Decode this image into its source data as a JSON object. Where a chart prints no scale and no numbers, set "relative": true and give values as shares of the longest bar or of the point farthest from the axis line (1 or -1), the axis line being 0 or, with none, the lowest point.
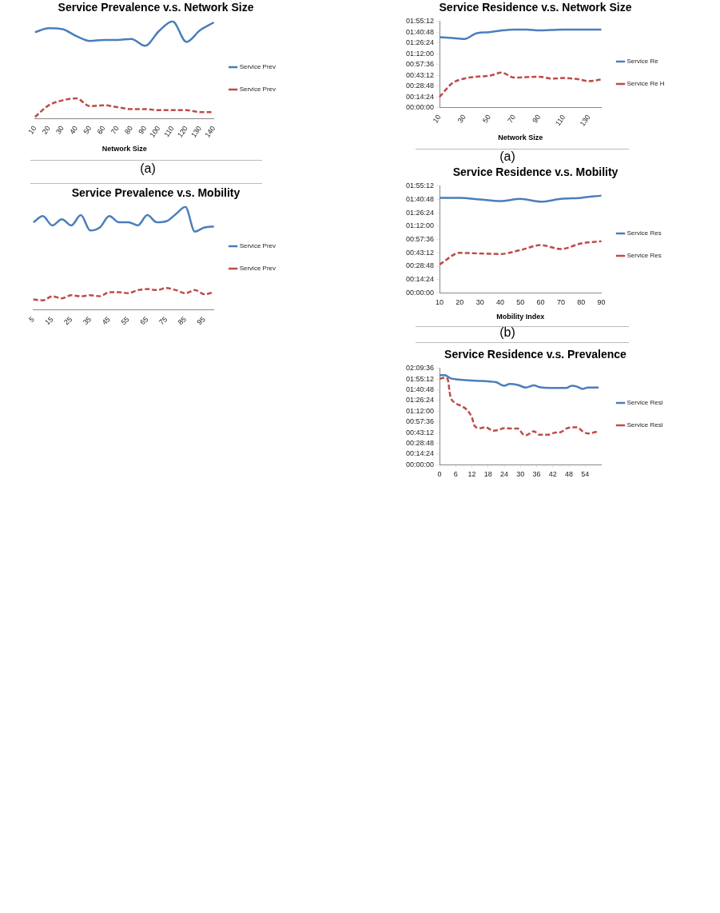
{
  "chart_data": [
    {
      "type": "line",
      "title": "Service Prevalence v.s. Network Size",
      "xlabel": "Network Size",
      "relative": true,
      "legend": "right",
      "marker": "none",
      "annotations": [
        "(a)"
      ],
      "categories": [
        "10",
        "20",
        "30",
        "40",
        "50",
        "60",
        "70",
        "80",
        "90",
        "100",
        "110",
        "120",
        "130",
        "140"
      ],
      "series": [
        {
          "name": "Service Prev",
          "color": "#4a7ebb",
          "line_style": "solid",
          "values": [
            0.89,
            0.93,
            0.92,
            0.85,
            0.8,
            0.81,
            0.81,
            0.82,
            0.75,
            0.9,
            1,
            0.79,
            0.91,
            0.99
          ]
        },
        {
          "name": "Service Prev",
          "color": "#be4b48",
          "line_style": "dashed",
          "values": [
            0.02,
            0.14,
            0.19,
            0.21,
            0.13,
            0.14,
            0.12,
            0.1,
            0.1,
            0.09,
            0.09,
            0.09,
            0.07,
            0.07
          ]
        }
      ]
    },
    {
      "type": "line",
      "title": "Service Prevalence v.s. Mobility",
      "relative": true,
      "legend": "right",
      "marker": "none",
      "categories": [
        "5",
        null,
        "15",
        null,
        "25",
        null,
        "35",
        null,
        "45",
        null,
        "55",
        null,
        "65",
        null,
        "75",
        null,
        "85",
        null,
        "95",
        null
      ],
      "series": [
        {
          "name": "Service Prev",
          "color": "#4a7ebb",
          "line_style": "solid",
          "values": [
            0.85,
            0.91,
            0.82,
            0.88,
            0.82,
            0.92,
            0.77,
            0.8,
            0.91,
            0.85,
            0.85,
            0.82,
            0.92,
            0.85,
            0.86,
            0.93,
            1,
            0.76,
            0.8,
            0.81
          ]
        },
        {
          "name": "Service Prev",
          "color": "#be4b48",
          "line_style": "dashed",
          "values": [
            0.1,
            0.09,
            0.13,
            0.11,
            0.14,
            0.13,
            0.14,
            0.13,
            0.17,
            0.17,
            0.16,
            0.19,
            0.2,
            0.19,
            0.21,
            0.19,
            0.16,
            0.19,
            0.15,
            0.17
          ]
        }
      ]
    },
    {
      "type": "line",
      "title": "Service Residence v.s. Network Size",
      "xlabel": "Network Size",
      "legend": "right",
      "marker": "none",
      "annotations": [
        "(a)"
      ],
      "categories": [
        "10",
        null,
        "30",
        null,
        "50",
        null,
        "70",
        null,
        "90",
        null,
        "110",
        null,
        "130",
        null
      ],
      "ylim": [
        0,
        1.92
      ],
      "yticks": [
        {
          "value": 0,
          "label": "00:00:00"
        },
        {
          "value": 0.24,
          "label": "00:14:24"
        },
        {
          "value": 0.48,
          "label": "00:28:48"
        },
        {
          "value": 0.72,
          "label": "00:43:12"
        },
        {
          "value": 0.96,
          "label": "00:57:36"
        },
        {
          "value": 1.2,
          "label": "01:12:00"
        },
        {
          "value": 1.44,
          "label": "01:26:24"
        },
        {
          "value": 1.68,
          "label": "01:40:48"
        },
        {
          "value": 1.92,
          "label": "01:55:12"
        }
      ],
      "series": [
        {
          "name": "Service Re",
          "color": "#4a7ebb",
          "line_style": "solid",
          "values": [
            1.57,
            1.55,
            1.53,
            1.66,
            1.68,
            1.72,
            1.74,
            1.74,
            1.72,
            1.73,
            1.74,
            1.74,
            1.74,
            1.74
          ]
        },
        {
          "name": "Service Re H",
          "color": "#be4b48",
          "line_style": "dashed",
          "values": [
            0.24,
            0.54,
            0.65,
            0.69,
            0.71,
            0.78,
            0.67,
            0.68,
            0.69,
            0.65,
            0.66,
            0.64,
            0.59,
            0.63
          ]
        }
      ]
    },
    {
      "type": "line",
      "title": "Service Residence v.s. Mobility",
      "xlabel": "Mobility Index",
      "legend": "right",
      "marker": "none",
      "annotations": [
        "(b)"
      ],
      "categories": [
        "10",
        "20",
        "30",
        "40",
        "50",
        "60",
        "70",
        "80",
        "90"
      ],
      "ylim": [
        0,
        1.92
      ],
      "yticks": [
        {
          "value": 0,
          "label": "00:00:00"
        },
        {
          "value": 0.24,
          "label": "00:14:24"
        },
        {
          "value": 0.48,
          "label": "00:28:48"
        },
        {
          "value": 0.72,
          "label": "00:43:12"
        },
        {
          "value": 0.96,
          "label": "00:57:36"
        },
        {
          "value": 1.2,
          "label": "01:12:00"
        },
        {
          "value": 1.44,
          "label": "01:26:24"
        },
        {
          "value": 1.68,
          "label": "01:40:48"
        },
        {
          "value": 1.92,
          "label": "01:55:12"
        }
      ],
      "series": [
        {
          "name": "Service Res",
          "color": "#4a7ebb",
          "line_style": "solid",
          "values": [
            1.71,
            1.71,
            1.68,
            1.65,
            1.69,
            1.64,
            1.69,
            1.71,
            1.75
          ]
        },
        {
          "name": "Service Res",
          "color": "#be4b48",
          "line_style": "dashed",
          "values": [
            0.51,
            0.72,
            0.71,
            0.7,
            0.77,
            0.86,
            0.79,
            0.89,
            0.93
          ]
        }
      ]
    },
    {
      "type": "line",
      "title": "Service Residence v.s. Prevalence",
      "legend": "right",
      "marker": "none",
      "xlim": [
        0,
        60
      ],
      "xticks": [
        0,
        6,
        12,
        18,
        24,
        30,
        36,
        42,
        48,
        54
      ],
      "ylim": [
        0,
        2.16
      ],
      "yticks": [
        {
          "value": 0,
          "label": "00:00:00"
        },
        {
          "value": 0.24,
          "label": "00:14:24"
        },
        {
          "value": 0.48,
          "label": "00:28:48"
        },
        {
          "value": 0.72,
          "label": "00:43:12"
        },
        {
          "value": 0.96,
          "label": "00:57:36"
        },
        {
          "value": 1.2,
          "label": "01:12:00"
        },
        {
          "value": 1.44,
          "label": "01:26:24"
        },
        {
          "value": 1.68,
          "label": "01:40:48"
        },
        {
          "value": 1.92,
          "label": "01:55:12"
        },
        {
          "value": 2.16,
          "label": "02:09:36"
        }
      ],
      "series": [
        {
          "name": "Service Resi",
          "color": "#4a7ebb",
          "line_style": "solid",
          "x": [
            0,
            2,
            4,
            7,
            11,
            15,
            18,
            21,
            24,
            26,
            29,
            32,
            35,
            37,
            41,
            45,
            47,
            49,
            51,
            53,
            55,
            59
          ],
          "values": [
            2.01,
            2.01,
            1.94,
            1.91,
            1.89,
            1.88,
            1.87,
            1.85,
            1.77,
            1.81,
            1.79,
            1.73,
            1.78,
            1.74,
            1.72,
            1.72,
            1.72,
            1.77,
            1.75,
            1.7,
            1.73,
            1.73
          ]
        },
        {
          "name": "Service Resi",
          "color": "#be4b48",
          "line_style": "dashed",
          "x": [
            0,
            2,
            3,
            4,
            6,
            8,
            10,
            12,
            13,
            15,
            17,
            20,
            22,
            24,
            27,
            29,
            31,
            32,
            35,
            37,
            40,
            43,
            45,
            47,
            51,
            53,
            55,
            59
          ],
          "values": [
            1.93,
            1.95,
            1.92,
            1.54,
            1.38,
            1.32,
            1.24,
            1.06,
            0.87,
            0.82,
            0.84,
            0.76,
            0.78,
            0.82,
            0.81,
            0.81,
            0.68,
            0.66,
            0.75,
            0.67,
            0.67,
            0.72,
            0.73,
            0.81,
            0.84,
            0.75,
            0.7,
            0.75
          ]
        }
      ]
    }
  ]
}
